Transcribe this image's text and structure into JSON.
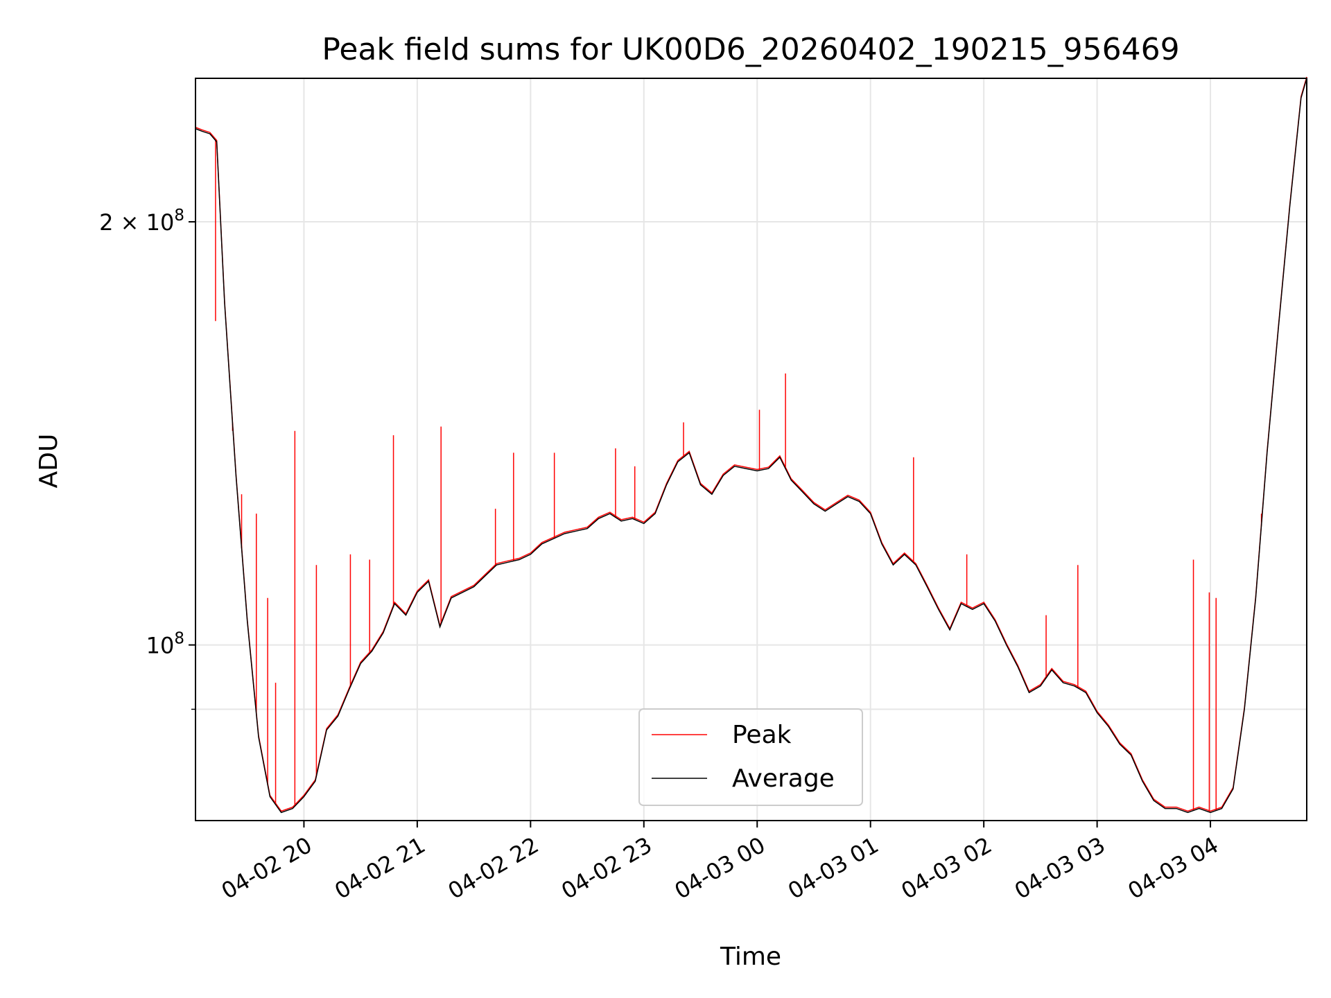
{
  "chart_data": {
    "type": "line",
    "title": "Peak field sums for UK00D6_20260402_190215_956469",
    "xlabel": "Time",
    "ylabel": "ADU",
    "yscale": "log",
    "grid": true,
    "legend_position": "bottom-center",
    "xlim_hours": [
      19.043,
      28.85
    ],
    "ylim": [
      75000000,
      253000000
    ],
    "x_ticks": [
      {
        "hour": 20,
        "label": "04-02 20"
      },
      {
        "hour": 21,
        "label": "04-02 21"
      },
      {
        "hour": 22,
        "label": "04-02 22"
      },
      {
        "hour": 23,
        "label": "04-02 23"
      },
      {
        "hour": 24,
        "label": "04-03 00"
      },
      {
        "hour": 25,
        "label": "04-03 01"
      },
      {
        "hour": 26,
        "label": "04-03 02"
      },
      {
        "hour": 27,
        "label": "04-03 03"
      },
      {
        "hour": 28,
        "label": "04-03 04"
      }
    ],
    "y_ticks": [
      {
        "value": 100000000,
        "mantissa": "",
        "exp": "8",
        "label": "10^8"
      },
      {
        "value": 200000000,
        "mantissa": "2 × ",
        "exp": "8",
        "label": "2 × 10^8"
      }
    ],
    "y_minor_ticks": [
      90000000
    ],
    "x_hours": [
      19.04,
      19.1,
      19.17,
      19.23,
      19.3,
      19.4,
      19.5,
      19.6,
      19.7,
      19.8,
      19.9,
      20.0,
      20.1,
      20.2,
      20.3,
      20.4,
      20.5,
      20.6,
      20.7,
      20.8,
      20.9,
      21.0,
      21.1,
      21.2,
      21.3,
      21.4,
      21.5,
      21.6,
      21.7,
      21.8,
      21.9,
      22.0,
      22.1,
      22.2,
      22.3,
      22.4,
      22.5,
      22.6,
      22.7,
      22.8,
      22.9,
      23.0,
      23.1,
      23.2,
      23.3,
      23.4,
      23.5,
      23.6,
      23.7,
      23.8,
      23.9,
      24.0,
      24.1,
      24.2,
      24.3,
      24.4,
      24.5,
      24.6,
      24.7,
      24.8,
      24.9,
      25.0,
      25.1,
      25.2,
      25.3,
      25.4,
      25.5,
      25.6,
      25.7,
      25.8,
      25.9,
      26.0,
      26.1,
      26.2,
      26.3,
      26.4,
      26.5,
      26.6,
      26.7,
      26.8,
      26.9,
      27.0,
      27.1,
      27.2,
      27.3,
      27.4,
      27.5,
      27.6,
      27.7,
      27.8,
      27.9,
      28.0,
      28.1,
      28.2,
      28.3,
      28.4,
      28.5,
      28.6,
      28.7,
      28.8,
      28.85
    ],
    "series": [
      {
        "name": "Average",
        "color": "#000000",
        "values": [
          233000000,
          232000000,
          231000000,
          228000000,
          175000000,
          132000000,
          104000000,
          86000000,
          78000000,
          76000000,
          76500000,
          78000000,
          80000000,
          87000000,
          89000000,
          93000000,
          97000000,
          99000000,
          102000000,
          107000000,
          105000000,
          109000000,
          111000000,
          103000000,
          108000000,
          109000000,
          110000000,
          112000000,
          114000000,
          114500000,
          115000000,
          116000000,
          118000000,
          119000000,
          120000000,
          120500000,
          121000000,
          123000000,
          124000000,
          122500000,
          123000000,
          122000000,
          124000000,
          130000000,
          135000000,
          137000000,
          130000000,
          128000000,
          132000000,
          134000000,
          133500000,
          133000000,
          133500000,
          136000000,
          131000000,
          128500000,
          126000000,
          124500000,
          126000000,
          127500000,
          126500000,
          124000000,
          118000000,
          114000000,
          116000000,
          114000000,
          110000000,
          106000000,
          102500000,
          107000000,
          106000000,
          107000000,
          104000000,
          100000000,
          96500000,
          92500000,
          93500000,
          96000000,
          94000000,
          93500000,
          92500000,
          89500000,
          87500000,
          85000000,
          83500000,
          80000000,
          77500000,
          76500000,
          76500000,
          76000000,
          76500000,
          76000000,
          76500000,
          79000000,
          90000000,
          108000000,
          137000000,
          168000000,
          205000000,
          245000000,
          253000000
        ]
      }
    ],
    "peak_spikes": [
      {
        "hour": 19.22,
        "value": 170000000
      },
      {
        "hour": 19.37,
        "value": 142000000
      },
      {
        "hour": 19.45,
        "value": 128000000
      },
      {
        "hour": 19.58,
        "value": 124000000
      },
      {
        "hour": 19.68,
        "value": 108000000
      },
      {
        "hour": 19.75,
        "value": 94000000
      },
      {
        "hour": 19.92,
        "value": 142000000
      },
      {
        "hour": 20.11,
        "value": 114000000
      },
      {
        "hour": 20.41,
        "value": 116000000
      },
      {
        "hour": 20.58,
        "value": 115000000
      },
      {
        "hour": 20.79,
        "value": 141000000
      },
      {
        "hour": 21.21,
        "value": 143000000
      },
      {
        "hour": 21.69,
        "value": 125000000
      },
      {
        "hour": 21.85,
        "value": 137000000
      },
      {
        "hour": 22.21,
        "value": 137000000
      },
      {
        "hour": 22.75,
        "value": 138000000
      },
      {
        "hour": 22.92,
        "value": 134000000
      },
      {
        "hour": 23.35,
        "value": 144000000
      },
      {
        "hour": 24.02,
        "value": 147000000
      },
      {
        "hour": 24.25,
        "value": 156000000
      },
      {
        "hour": 25.38,
        "value": 136000000
      },
      {
        "hour": 25.85,
        "value": 116000000
      },
      {
        "hour": 26.55,
        "value": 105000000
      },
      {
        "hour": 26.83,
        "value": 114000000
      },
      {
        "hour": 27.85,
        "value": 115000000
      },
      {
        "hour": 27.99,
        "value": 109000000
      },
      {
        "hour": 28.05,
        "value": 108000000
      },
      {
        "hour": 28.45,
        "value": 124000000
      }
    ],
    "legend": [
      {
        "label": "Peak",
        "color": "#ff0000"
      },
      {
        "label": "Average",
        "color": "#000000"
      }
    ]
  }
}
